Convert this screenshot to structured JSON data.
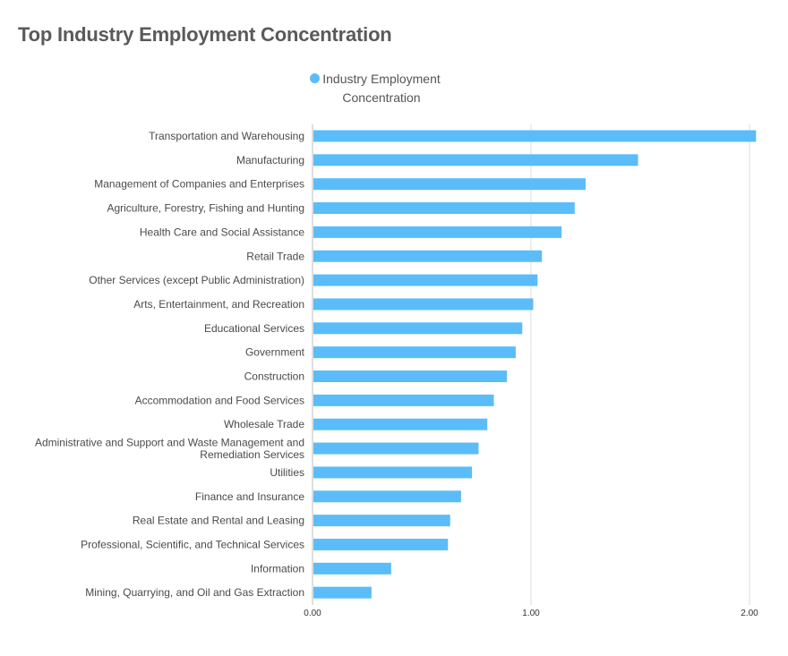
{
  "title": "Top Industry Employment Concentration",
  "legend": {
    "label": "Industry Employment Concentration"
  },
  "colors": {
    "bar": "#5bbcfa",
    "grid": "#dcdcdc",
    "axis": "#bcbcbc"
  },
  "chart_data": {
    "type": "bar",
    "orientation": "horizontal",
    "title": "Top Industry Employment Concentration",
    "xlim": [
      0,
      2.0
    ],
    "grid": true,
    "legend_position": "top",
    "x_ticks": [
      "0.00",
      "1.00",
      "2.00"
    ],
    "series": [
      {
        "name": "Industry Employment Concentration"
      }
    ],
    "categories": [
      "Transportation and Warehousing",
      "Manufacturing",
      "Management of Companies and Enterprises",
      "Agriculture, Forestry, Fishing and Hunting",
      "Health Care and Social Assistance",
      "Retail Trade",
      "Other Services (except Public Administration)",
      "Arts, Entertainment, and Recreation",
      "Educational Services",
      "Government",
      "Construction",
      "Accommodation and Food Services",
      "Wholesale Trade",
      "Administrative and Support and Waste Management and Remediation Services",
      "Utilities",
      "Finance and Insurance",
      "Real Estate and Rental and Leasing",
      "Professional, Scientific, and Technical Services",
      "Information",
      "Mining, Quarrying, and Oil and Gas Extraction"
    ],
    "category_lines": [
      [
        "Transportation and Warehousing"
      ],
      [
        "Manufacturing"
      ],
      [
        "Management of Companies and Enterprises"
      ],
      [
        "Agriculture, Forestry, Fishing and Hunting"
      ],
      [
        "Health Care and Social Assistance"
      ],
      [
        "Retail Trade"
      ],
      [
        "Other Services (except Public Administration)"
      ],
      [
        "Arts, Entertainment, and Recreation"
      ],
      [
        "Educational Services"
      ],
      [
        "Government"
      ],
      [
        "Construction"
      ],
      [
        "Accommodation and Food Services"
      ],
      [
        "Wholesale Trade"
      ],
      [
        "Administrative and Support and Waste Management and",
        "Remediation Services"
      ],
      [
        "Utilities"
      ],
      [
        "Finance and Insurance"
      ],
      [
        "Real Estate and Rental and Leasing"
      ],
      [
        "Professional, Scientific, and Technical Services"
      ],
      [
        "Information"
      ],
      [
        "Mining, Quarrying, and Oil and Gas Extraction"
      ]
    ],
    "values": [
      2.03,
      1.49,
      1.25,
      1.2,
      1.14,
      1.05,
      1.03,
      1.01,
      0.96,
      0.93,
      0.89,
      0.83,
      0.8,
      0.76,
      0.73,
      0.68,
      0.63,
      0.62,
      0.36,
      0.27
    ]
  }
}
